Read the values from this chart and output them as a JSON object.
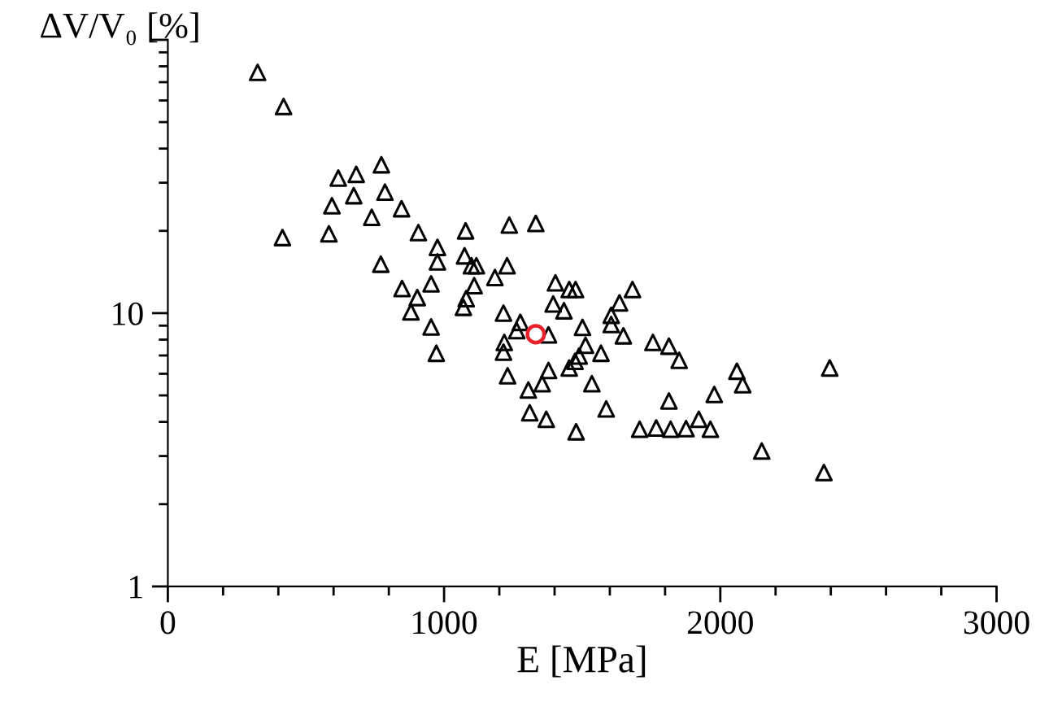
{
  "chart_data": {
    "type": "scatter",
    "xlabel": "E [MPa]",
    "ylabel": "ΔV/V₀ [%]",
    "xlim": [
      0,
      3000
    ],
    "xticks": [
      0,
      1000,
      2000,
      3000
    ],
    "ylim": [
      1,
      100
    ],
    "yticks": [
      1,
      10,
      {
        "value": 100,
        "label": null
      }
    ],
    "log": "y",
    "grid": false,
    "legend": false,
    "series": [
      {
        "color": "#000000",
        "marker": "triangle",
        "x": [
          325,
          419,
          773,
          617,
          682,
          786,
          673,
          594,
          846,
          738,
          415,
          583,
          907,
          1078,
          1236,
          1332,
          976,
          976,
          1074,
          771,
          1099,
          1117,
          1228,
          1184,
          848,
          953,
          1109,
          903,
          1080,
          880,
          1070,
          1403,
          1453,
          1476,
          1395,
          1434,
          953,
          1215,
          1276,
          1263,
          1378,
          1501,
          1218,
          972,
          1215,
          1682,
          1635,
          1605,
          1605,
          1649,
          1512,
          1568,
          1756,
          1814,
          1851,
          1489,
          1474,
          1453,
          1378,
          1355,
          1305,
          1535,
          2060,
          2081,
          2396,
          1978,
          1814,
          1587,
          1310,
          1370,
          1478,
          1708,
          1768,
          1820,
          1876,
          1922,
          1964,
          2150,
          2375,
          1230
        ],
        "values": [
          76,
          57,
          34.9,
          31.2,
          32.2,
          27.7,
          26.9,
          24.7,
          24.1,
          22.4,
          18.9,
          19.5,
          19.7,
          20,
          21,
          21.3,
          17.4,
          15.4,
          16.2,
          15.1,
          14.9,
          14.9,
          14.9,
          13.5,
          12.3,
          12.8,
          12.6,
          11.4,
          11.3,
          10.1,
          10.5,
          12.9,
          12.2,
          12.2,
          10.8,
          10.2,
          8.9,
          10.0,
          9.25,
          8.63,
          8.33,
          8.87,
          7.81,
          7.13,
          7.2,
          12.2,
          10.9,
          9.82,
          9.08,
          8.26,
          7.63,
          7.13,
          7.81,
          7.57,
          6.72,
          6.97,
          6.66,
          6.3,
          6.17,
          5.52,
          5.23,
          5.52,
          6.13,
          5.47,
          6.3,
          5.04,
          4.77,
          4.46,
          4.32,
          4.09,
          3.68,
          3.76,
          3.8,
          3.76,
          3.78,
          4.09,
          3.76,
          3.13,
          2.61,
          5.9
        ]
      },
      {
        "color": "#e8202a",
        "marker": "circle",
        "x": [
          1332
        ],
        "values": [
          8.37
        ]
      }
    ]
  }
}
